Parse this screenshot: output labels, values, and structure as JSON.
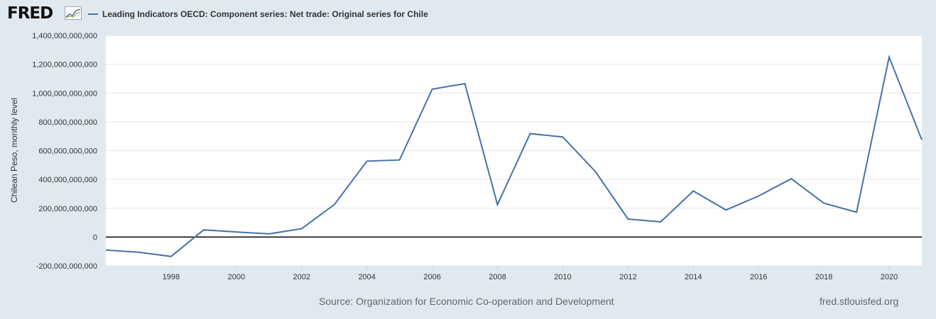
{
  "header": {
    "logo_text": "FRED",
    "logo_icon": "chart-line-icon",
    "legend_label": "Leading Indicators OECD: Component series: Net trade: Original series for Chile"
  },
  "footer": {
    "source": "Source: Organization for Economic Co-operation and Development",
    "site": "fred.stlouisfed.org"
  },
  "colors": {
    "page_background": "#e1e9f0",
    "plot_background": "#ffffff",
    "series": "#4572a7",
    "zero_line": "#000000",
    "grid": "#e6e6e6"
  },
  "chart_data": {
    "type": "line",
    "title": "",
    "xlabel": "",
    "ylabel": "Chilean Peso, monthly level",
    "xlim": [
      1996,
      2021
    ],
    "ylim": [
      -200000000000,
      1400000000000
    ],
    "grid": true,
    "legend_position": "top-left",
    "x_tick_labels": [
      "1998",
      "2000",
      "2002",
      "2004",
      "2006",
      "2008",
      "2010",
      "2012",
      "2014",
      "2016",
      "2018",
      "2020"
    ],
    "y_tick_labels": [
      "-200,000,000,000",
      "0",
      "200,000,000,000",
      "400,000,000,000",
      "600,000,000,000",
      "800,000,000,000",
      "1,000,000,000,000",
      "1,200,000,000,000",
      "1,400,000,000,000"
    ],
    "series": [
      {
        "name": "Leading Indicators OECD: Component series: Net trade: Original series for Chile",
        "x": [
          1996,
          1997,
          1998,
          1999,
          2000,
          2001,
          2002,
          2003,
          2004,
          2005,
          2006,
          2007,
          2008,
          2009,
          2010,
          2011,
          2012,
          2013,
          2014,
          2015,
          2016,
          2017,
          2018,
          2019,
          2020,
          2021
        ],
        "y": [
          -90000000000,
          -105000000000,
          -135000000000,
          50000000000,
          35000000000,
          22000000000,
          58000000000,
          225000000000,
          527000000000,
          535000000000,
          1027000000000,
          1065000000000,
          225000000000,
          718000000000,
          695000000000,
          455000000000,
          125000000000,
          105000000000,
          320000000000,
          188000000000,
          285000000000,
          405000000000,
          235000000000,
          172000000000,
          1250000000000,
          675000000000
        ]
      }
    ]
  }
}
